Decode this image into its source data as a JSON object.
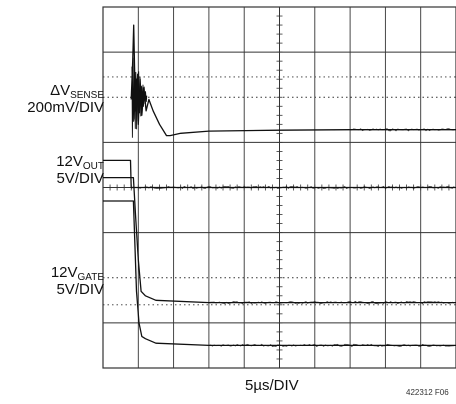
{
  "chart_data": {
    "type": "line",
    "instrument": "oscilloscope",
    "grid": {
      "divisions_x": 10,
      "divisions_y": 8,
      "minor_ticks_per_div": 5,
      "style": "solid gridlines, dotted reference levels"
    },
    "timebase": "5µs/DIV",
    "xlim_div": [
      0,
      10
    ],
    "ylim_div": [
      0,
      8
    ],
    "traces": [
      {
        "name": "ΔV_SENSE",
        "label_main": "ΔV",
        "label_sub": "SENSE",
        "scale": "200mV/DIV",
        "unit_note": "values in divisions (x from left edge, y from top)",
        "baseline_div": 2.1,
        "points": [
          [
            0.8,
            2.05
          ],
          [
            0.84,
            1.2
          ],
          [
            0.87,
            0.4
          ],
          [
            0.9,
            1.6
          ],
          [
            0.93,
            2.3
          ],
          [
            0.96,
            1.6
          ],
          [
            1.0,
            2.6
          ],
          [
            1.05,
            1.6
          ],
          [
            1.1,
            2.4
          ],
          [
            1.16,
            1.8
          ],
          [
            1.22,
            2.3
          ],
          [
            1.3,
            2.05
          ],
          [
            1.42,
            2.3
          ],
          [
            1.6,
            2.6
          ],
          [
            1.8,
            2.85
          ],
          [
            1.9,
            2.85
          ],
          [
            2.2,
            2.8
          ],
          [
            3.0,
            2.75
          ],
          [
            5.0,
            2.73
          ],
          [
            7.0,
            2.72
          ],
          [
            10.0,
            2.72
          ]
        ]
      },
      {
        "name": "12V_OUT",
        "label_main": "12V",
        "label_sub": "OUT",
        "scale": "5V/DIV",
        "points": [
          [
            0,
            3.4
          ],
          [
            0.78,
            3.4
          ],
          [
            0.8,
            4.0
          ],
          [
            10.0,
            4.0
          ]
        ]
      },
      {
        "name": "12V_GATE",
        "label_main": "12V",
        "label_sub": "GATE",
        "scale": "5V/DIV",
        "points": [
          [
            0,
            3.78
          ],
          [
            0.86,
            3.78
          ],
          [
            0.92,
            4.6
          ],
          [
            1.0,
            5.6
          ],
          [
            1.08,
            6.3
          ],
          [
            1.2,
            6.4
          ],
          [
            1.5,
            6.5
          ],
          [
            3.0,
            6.55
          ],
          [
            10.0,
            6.55
          ]
        ]
      },
      {
        "name": "fourth trace",
        "points": [
          [
            0,
            4.3
          ],
          [
            0.86,
            4.3
          ],
          [
            0.9,
            5.2
          ],
          [
            0.95,
            6.3
          ],
          [
            1.02,
            7.0
          ],
          [
            1.1,
            7.3
          ],
          [
            1.2,
            7.35
          ],
          [
            1.5,
            7.45
          ],
          [
            3.0,
            7.5
          ],
          [
            10.0,
            7.5
          ]
        ]
      }
    ],
    "figure_id": "422312 F06"
  },
  "labels": {
    "dvsense_main": "ΔV",
    "dvsense_sub": "SENSE",
    "dvsense_scale": "200mV/DIV",
    "vout_main": "12V",
    "vout_sub": "OUT",
    "vout_scale": "5V/DIV",
    "vgate_main": "12V",
    "vgate_sub": "GATE",
    "vgate_scale": "5V/DIV",
    "timebase": "5µs/DIV",
    "figure_id": "422312 F06"
  },
  "colors": {
    "grid": "#333333",
    "trace": "#111111",
    "background": "#ffffff"
  }
}
